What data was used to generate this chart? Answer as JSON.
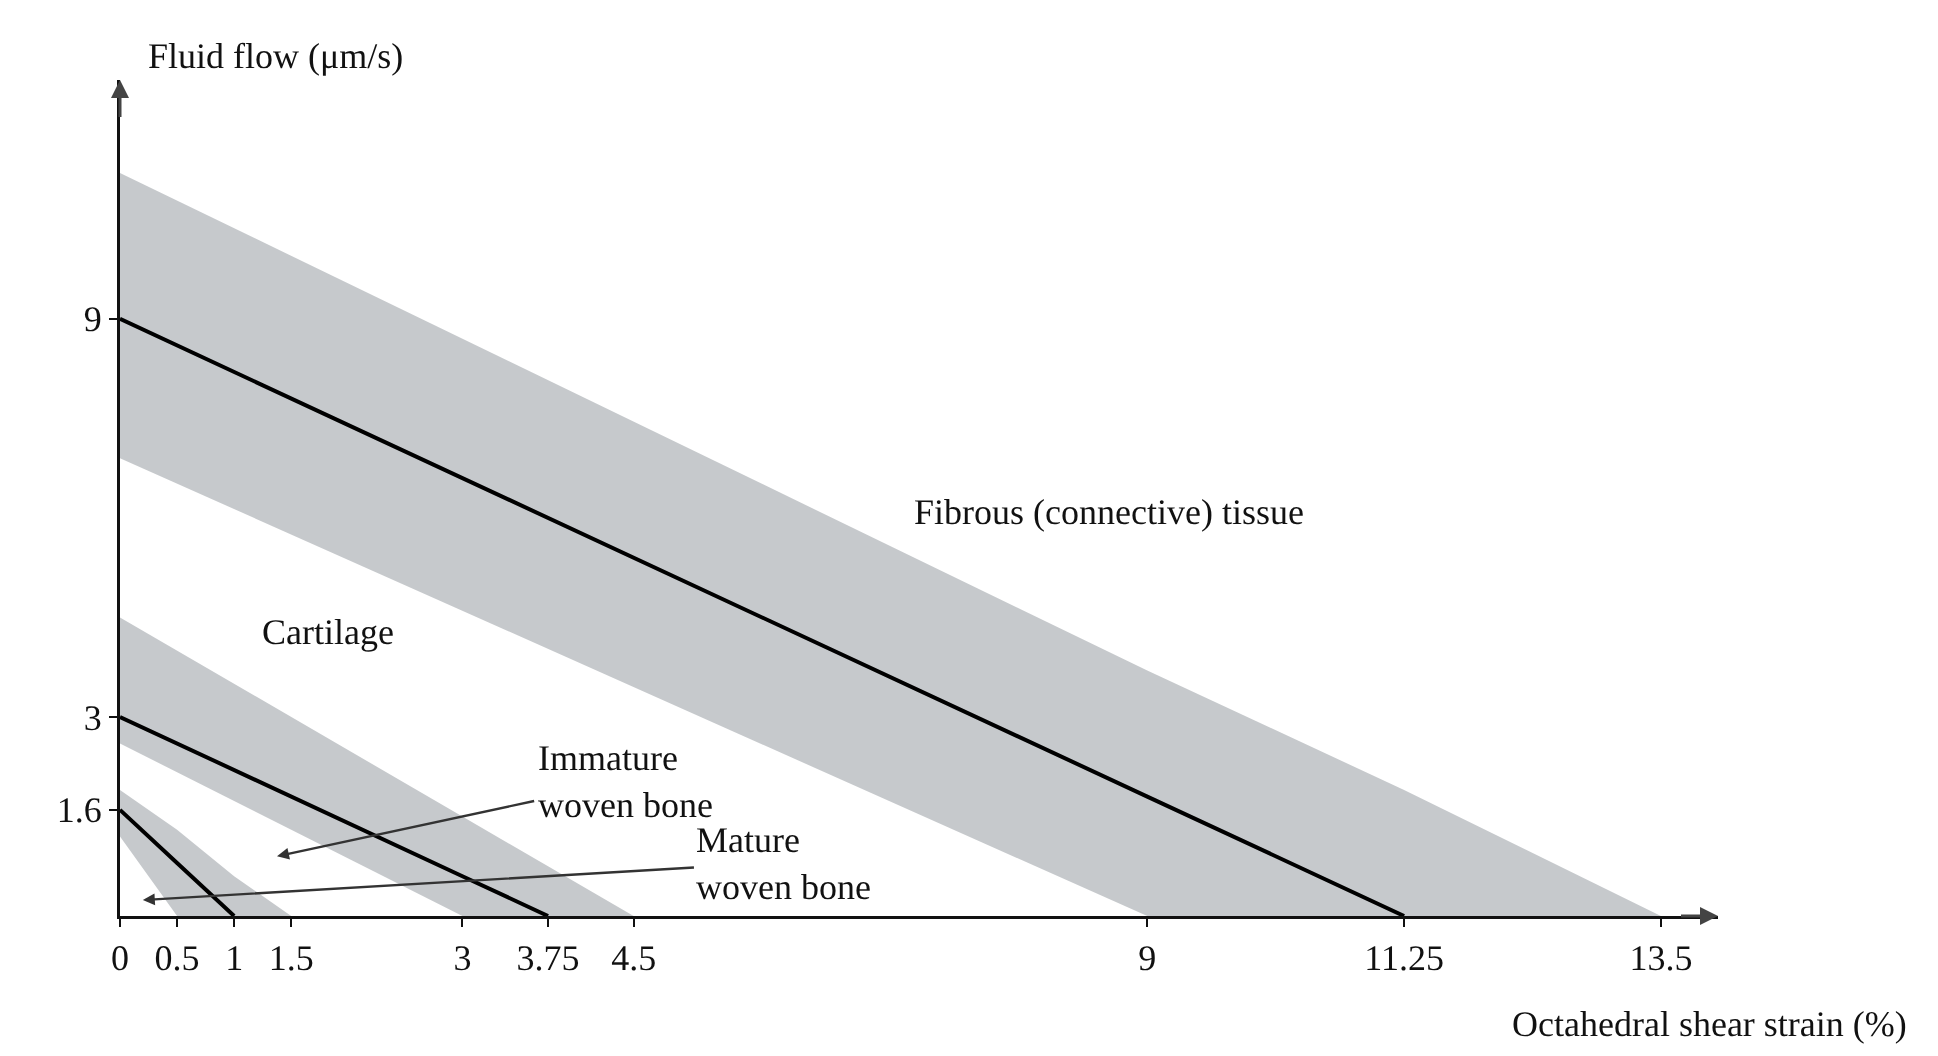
{
  "chart_data": {
    "type": "line",
    "xlabel": "Octahedral shear strain (%)",
    "ylabel": "Fluid flow (μm/s)",
    "xlim": [
      0,
      14
    ],
    "ylim": [
      0,
      12.6
    ],
    "xticks": [
      0,
      0.5,
      1,
      1.5,
      3,
      3.75,
      4.5,
      9,
      11.25,
      13.5
    ],
    "yticks": [
      1.6,
      3,
      9
    ],
    "series": [
      {
        "color": "#000000",
        "x": [
          0,
          0.5,
          1,
          1.5
        ],
        "values": [
          1.6,
          0.8,
          0,
          null
        ],
        "lower": [
          1.2,
          0,
          0,
          0
        ],
        "upper": [
          1.9,
          1.3,
          0.6,
          0
        ]
      },
      {
        "color": "#000000",
        "x": [
          0,
          3,
          3.75,
          4.5
        ],
        "values": [
          3,
          0.6,
          0,
          null
        ],
        "lower": [
          2.6,
          0,
          0,
          0
        ],
        "upper": [
          4.5,
          1.5,
          0.75,
          0
        ]
      },
      {
        "color": "#000000",
        "x": [
          0,
          9,
          11.25,
          13.5
        ],
        "values": [
          9,
          1.8,
          0,
          null
        ],
        "lower": [
          6.9,
          0,
          0,
          0
        ],
        "upper": [
          11.2,
          3.7,
          1.9,
          0
        ]
      }
    ],
    "annotations": [
      "Fibrous (connective) tissue",
      "Cartilage",
      "Immature\nwoven bone",
      "Mature\nwoven bone"
    ],
    "grid": false,
    "marker": "none",
    "line_style": "solid"
  }
}
